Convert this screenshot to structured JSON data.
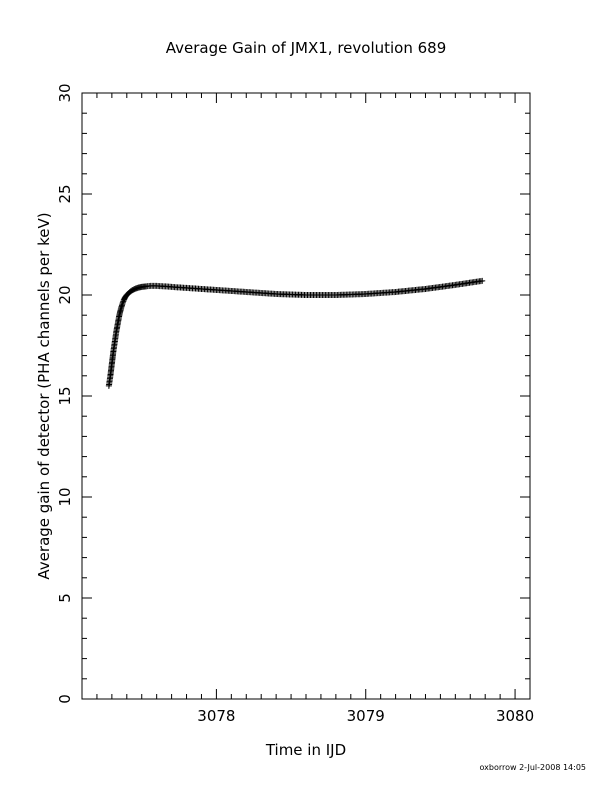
{
  "chart_data": {
    "type": "scatter",
    "title": "Average Gain of JMX1, revolution 689",
    "xlabel": "Time in IJD",
    "ylabel": "Average gain of detector (PHA channels per keV)",
    "xlim": [
      3077.1,
      3080.1
    ],
    "ylim": [
      0,
      30
    ],
    "x_ticks": [
      3078,
      3079,
      3080
    ],
    "y_ticks": [
      0,
      5,
      10,
      15,
      20,
      25,
      30
    ],
    "marker": "plus",
    "grid": false,
    "series": [
      {
        "x": [
          3077.28,
          3077.29,
          3077.3,
          3077.31,
          3077.32,
          3077.33,
          3077.34,
          3077.35,
          3077.36,
          3077.37,
          3077.38,
          3077.39,
          3077.4,
          3077.42,
          3077.44,
          3077.46,
          3077.48,
          3077.5,
          3077.53,
          3077.56,
          3077.6,
          3077.65,
          3077.7,
          3077.8,
          3077.9,
          3078.0,
          3078.2,
          3078.4,
          3078.6,
          3078.8,
          3079.0,
          3079.2,
          3079.4,
          3079.6,
          3079.78
        ],
        "y": [
          15.5,
          16.0,
          16.6,
          17.2,
          17.7,
          18.2,
          18.6,
          19.0,
          19.3,
          19.55,
          19.75,
          19.9,
          20.0,
          20.15,
          20.25,
          20.32,
          20.37,
          20.4,
          20.43,
          20.45,
          20.45,
          20.43,
          20.4,
          20.35,
          20.3,
          20.25,
          20.15,
          20.05,
          20.0,
          20.0,
          20.05,
          20.15,
          20.3,
          20.5,
          20.7
        ]
      }
    ]
  },
  "footer": "oxborrow   2-Jul-2008 14:05"
}
